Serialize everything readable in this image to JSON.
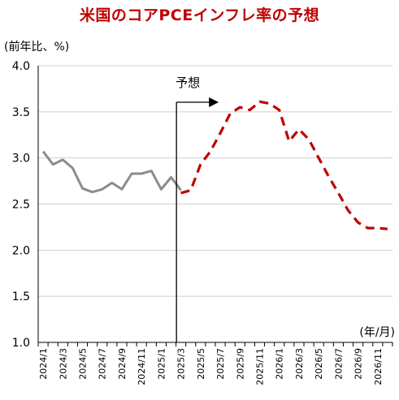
{
  "chart_data": {
    "type": "line",
    "title": "米国のコアPCEインフレ率の予想",
    "ylabel": "(前年比、%)",
    "xlabel": "(年/月)",
    "ylim": [
      1.0,
      4.0
    ],
    "yticks": [
      "4.0",
      "3.5",
      "3.0",
      "2.5",
      "2.0",
      "1.5",
      "1.0"
    ],
    "ytick_values": [
      4.0,
      3.5,
      3.0,
      2.5,
      2.0,
      1.5,
      1.0
    ],
    "categories": [
      "2024/1",
      "2024/2",
      "2024/3",
      "2024/4",
      "2024/5",
      "2024/6",
      "2024/7",
      "2024/8",
      "2024/9",
      "2024/10",
      "2024/11",
      "2024/12",
      "2025/1",
      "2025/2",
      "2025/3",
      "2025/4",
      "2025/5",
      "2025/6",
      "2025/7",
      "2025/8",
      "2025/9",
      "2025/10",
      "2025/11",
      "2025/12",
      "2026/1",
      "2026/2",
      "2026/3",
      "2026/4",
      "2026/5",
      "2026/6",
      "2026/7",
      "2026/8",
      "2026/9",
      "2026/10",
      "2026/11",
      "2026/12"
    ],
    "x_tick_labels": [
      "2024/1",
      "2024/3",
      "2024/5",
      "2024/7",
      "2024/9",
      "2024/11",
      "2025/1",
      "2025/3",
      "2025/5",
      "2025/7",
      "2025/9",
      "2025/11",
      "2026/1",
      "2026/3",
      "2026/5",
      "2026/7",
      "2026/9",
      "2026/11"
    ],
    "series": [
      {
        "values": [
          3.07,
          2.93,
          2.98,
          2.89,
          2.67,
          2.63,
          2.66,
          2.73,
          2.66,
          2.83,
          2.83,
          2.86,
          2.66,
          2.79,
          2.65,
          null,
          null,
          null,
          null,
          null,
          null,
          null,
          null,
          null,
          null,
          null,
          null,
          null,
          null,
          null,
          null,
          null,
          null,
          null,
          null,
          null
        ],
        "color": "#8c8c8c",
        "style": "solid"
      },
      {
        "values": [
          null,
          null,
          null,
          null,
          null,
          null,
          null,
          null,
          null,
          null,
          null,
          null,
          null,
          null,
          2.62,
          2.65,
          2.93,
          3.07,
          3.27,
          3.48,
          3.55,
          3.52,
          3.61,
          3.59,
          3.52,
          3.18,
          3.31,
          3.2,
          3.0,
          2.8,
          2.62,
          2.43,
          2.3,
          2.24,
          2.24,
          2.23
        ],
        "color": "#c00000",
        "style": "dashed"
      }
    ],
    "forecast_marker": {
      "label": "予想",
      "at": "2025/3",
      "color": "#000000"
    },
    "grid": "horizontal",
    "grid_color": "#cfcfcf"
  }
}
